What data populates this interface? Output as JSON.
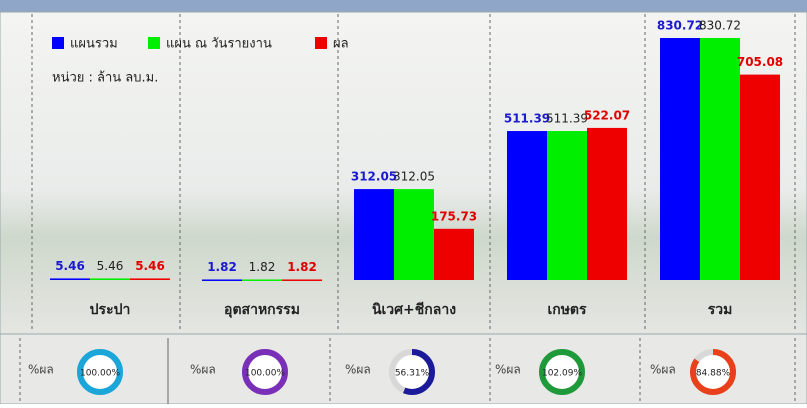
{
  "chart_data": [
    {
      "type": "bar",
      "subtitle": "หน่วย : ล้าน ลบ.ม.",
      "categories": [
        "ประปา",
        "อุตสาหกรรม",
        "นิเวศ+ชีกลาง",
        "เกษตร",
        "รวม"
      ],
      "series": [
        {
          "name": "แผนรวม",
          "color": "#0000ff",
          "values": [
            5.46,
            1.82,
            312.05,
            511.39,
            830.72
          ]
        },
        {
          "name": "แผน ณ วันรายงาน",
          "color": "#00ee00",
          "values": [
            5.46,
            1.82,
            312.05,
            511.39,
            830.72
          ]
        },
        {
          "name": "ผล",
          "color": "#ee0000",
          "values": [
            5.46,
            1.82,
            175.73,
            522.07,
            705.08
          ]
        }
      ]
    },
    {
      "type": "gauge",
      "label": "%ผล",
      "values": [
        100.0,
        100.0,
        56.31,
        102.09,
        84.88
      ],
      "value_labels": [
        "100.00%",
        "100.00%",
        "56.31%",
        "102.09%",
        "84.88%"
      ],
      "colors": [
        "#1aa6d8",
        "#7a2fb8",
        "#1a1a9a",
        "#1f9a3a",
        "#e8401a"
      ]
    }
  ]
}
